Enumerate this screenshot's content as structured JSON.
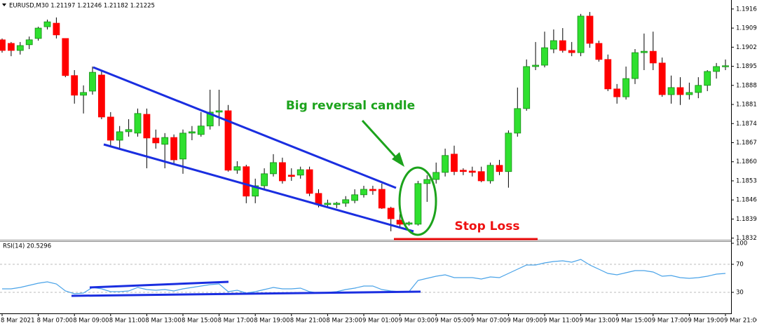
{
  "chart_data": [
    {
      "type": "candlestick",
      "title": "EURUSD,M30  1.21197 1.21246 1.21182 1.21225",
      "annotations": [
        "Big reversal candle",
        "Stop Loss"
      ],
      "categories": [
        "8 Mar 2021",
        null,
        null,
        null,
        "8 Mar 07:00",
        null,
        null,
        null,
        "8 Mar 09:00",
        null,
        null,
        null,
        "8 Mar 11:00",
        null,
        null,
        null,
        "8 Mar 13:00",
        null,
        null,
        null,
        "8 Mar 15:00",
        null,
        null,
        null,
        "8 Mar 17:00",
        null,
        null,
        null,
        "8 Mar 19:00",
        null,
        null,
        null,
        "8 Mar 21:00",
        null,
        null,
        null,
        "8 Mar 23:00",
        null,
        null,
        null,
        "9 Mar 01:00",
        null,
        null,
        null,
        "9 Mar 03:00",
        null,
        null,
        null,
        "9 Mar 05:00",
        null,
        null,
        null,
        "9 Mar 07:00",
        null,
        null,
        null,
        "9 Mar 09:00",
        null,
        null,
        null,
        "9 Mar 11:00",
        null,
        null,
        null,
        "9 Mar 13:00",
        null,
        null,
        null,
        "9 Mar 15:00",
        null,
        null,
        null,
        "9 Mar 17:00",
        null,
        null,
        null,
        "9 Mar 19:00",
        null,
        null,
        null,
        "9 Mar 21:00"
      ],
      "open": [
        1.19052,
        1.19039,
        1.19013,
        1.19034,
        1.19057,
        1.191,
        1.19113,
        1.19057,
        1.18921,
        1.18849,
        1.18864,
        1.18923,
        1.18769,
        1.18684,
        1.18715,
        1.1871,
        1.18779,
        1.18692,
        1.18669,
        1.18694,
        1.18615,
        1.1871,
        1.18705,
        1.18736,
        1.18787,
        1.18792,
        1.18574,
        1.18587,
        1.18479,
        1.18517,
        1.18561,
        1.18602,
        1.18556,
        1.18556,
        1.18576,
        1.18489,
        1.18448,
        1.18448,
        1.18453,
        1.18463,
        1.18484,
        1.18504,
        1.18504,
        1.18435,
        1.18391,
        1.18376,
        1.18376,
        1.18525,
        1.1854,
        1.18566,
        1.18633,
        1.18574,
        1.18571,
        1.18569,
        1.18535,
        1.18592,
        1.18569,
        1.1871,
        1.188,
        1.18954,
        1.18959,
        1.19018,
        1.19049,
        1.19013,
        1.19005,
        1.19139,
        1.19039,
        1.1898,
        1.18872,
        1.18843,
        1.1891,
        1.19005,
        1.1901,
        1.18967,
        1.18851,
        1.18877,
        1.18851,
        1.18859,
        1.18885,
        1.18936,
        1.18954
      ],
      "high": [
        1.19057,
        1.19044,
        1.19044,
        1.19064,
        1.191,
        1.19126,
        1.19134,
        1.19057,
        1.18941,
        1.18885,
        1.18954,
        1.18941,
        1.18787,
        1.18736,
        1.18761,
        1.188,
        1.188,
        1.18723,
        1.1871,
        1.18705,
        1.18723,
        1.18736,
        1.18787,
        1.18869,
        1.18869,
        1.18813,
        1.18607,
        1.18594,
        1.18543,
        1.18581,
        1.18633,
        1.1862,
        1.18581,
        1.18587,
        1.18587,
        1.18504,
        1.18466,
        1.18458,
        1.18479,
        1.18504,
        1.18517,
        1.18517,
        1.18525,
        1.1844,
        1.18414,
        1.18386,
        1.18535,
        1.18556,
        1.18602,
        1.18653,
        1.18664,
        1.18581,
        1.18587,
        1.18587,
        1.18602,
        1.18612,
        1.1872,
        1.18877,
        1.1898,
        1.19044,
        1.19082,
        1.1909,
        1.19095,
        1.19044,
        1.19147,
        1.19154,
        1.19049,
        1.18998,
        1.1889,
        1.18954,
        1.19018,
        1.19075,
        1.19082,
        1.18987,
        1.18921,
        1.18915,
        1.18895,
        1.18915,
        1.18941,
        1.18967,
        1.1898
      ],
      "low": [
        1.19005,
        1.18992,
        1.18998,
        1.19018,
        1.19049,
        1.1909,
        1.19057,
        1.18915,
        1.18818,
        1.18782,
        1.18851,
        1.18761,
        1.18659,
        1.18653,
        1.18697,
        1.18697,
        1.18581,
        1.18653,
        1.18581,
        1.18594,
        1.18561,
        1.18684,
        1.18697,
        1.18723,
        1.18736,
        1.18569,
        1.18561,
        1.18453,
        1.18453,
        1.18504,
        1.18551,
        1.18525,
        1.18535,
        1.18543,
        1.18479,
        1.18438,
        1.18438,
        1.18435,
        1.1844,
        1.18453,
        1.18474,
        1.18484,
        1.18432,
        1.1835,
        1.18363,
        1.18371,
        1.18371,
        1.18458,
        1.18525,
        1.18551,
        1.18556,
        1.18556,
        1.18551,
        1.1853,
        1.18525,
        1.18556,
        1.1851,
        1.18697,
        1.18792,
        1.18941,
        1.18951,
        1.19003,
        1.19005,
        1.18992,
        1.18992,
        1.19023,
        1.18972,
        1.18864,
        1.18818,
        1.18833,
        1.1889,
        1.18941,
        1.18941,
        1.18843,
        1.18818,
        1.18813,
        1.18833,
        1.18838,
        1.18864,
        1.1891,
        1.18941
      ],
      "close": [
        1.19013,
        1.19013,
        1.19031,
        1.19052,
        1.19095,
        1.19118,
        1.1907,
        1.18921,
        1.18849,
        1.18859,
        1.18933,
        1.18769,
        1.18684,
        1.18715,
        1.18723,
        1.18782,
        1.18692,
        1.18674,
        1.18694,
        1.18612,
        1.1871,
        1.18715,
        1.18736,
        1.18787,
        1.18792,
        1.18574,
        1.18587,
        1.18479,
        1.18517,
        1.18561,
        1.18602,
        1.18535,
        1.18551,
        1.18576,
        1.18489,
        1.18448,
        1.18453,
        1.18453,
        1.18466,
        1.18484,
        1.18504,
        1.18499,
        1.18435,
        1.18396,
        1.18376,
        1.18381,
        1.18525,
        1.1854,
        1.18566,
        1.18628,
        1.18569,
        1.18569,
        1.18566,
        1.18535,
        1.18592,
        1.18569,
        1.1871,
        1.188,
        1.18954,
        1.18959,
        1.19023,
        1.19049,
        1.19013,
        1.19005,
        1.19139,
        1.19039,
        1.1898,
        1.18872,
        1.18843,
        1.1891,
        1.19005,
        1.1901,
        1.18967,
        1.18851,
        1.18877,
        1.18851,
        1.18859,
        1.18885,
        1.18936,
        1.18954,
        1.18957
      ],
      "up_color": "#2fe02f",
      "down_color": "#ff0000",
      "ylim": [
        1.18319,
        1.19198
      ],
      "yticks": [
        1.19165,
        1.19095,
        1.19025,
        1.18955,
        1.18885,
        1.18815,
        1.18745,
        1.18675,
        1.18605,
        1.18535,
        1.18465,
        1.18395,
        1.18325
      ],
      "grid": false
    },
    {
      "type": "line",
      "title": "RSI(14) 20.5296",
      "values": [
        35,
        35,
        37,
        40,
        43,
        45,
        42,
        32,
        28,
        29,
        37,
        35,
        31,
        31,
        32,
        37,
        34,
        33,
        34,
        32,
        35,
        37,
        39,
        41,
        42,
        31,
        33,
        29,
        31,
        34,
        37,
        35,
        35,
        36,
        31,
        29,
        30,
        31,
        34,
        36,
        39,
        39,
        34,
        32,
        31,
        31,
        47,
        50,
        53,
        55,
        51,
        51,
        51,
        49,
        52,
        51,
        57,
        63,
        69,
        69,
        72,
        74,
        75,
        73,
        77,
        69,
        63,
        57,
        55,
        58,
        61,
        61,
        59,
        53,
        54,
        51,
        50,
        51,
        53,
        56,
        57
      ],
      "color": "#4aa3e8",
      "ylim": [
        0,
        100
      ],
      "yticks": [
        30,
        70,
        100
      ],
      "grid": true
    }
  ]
}
